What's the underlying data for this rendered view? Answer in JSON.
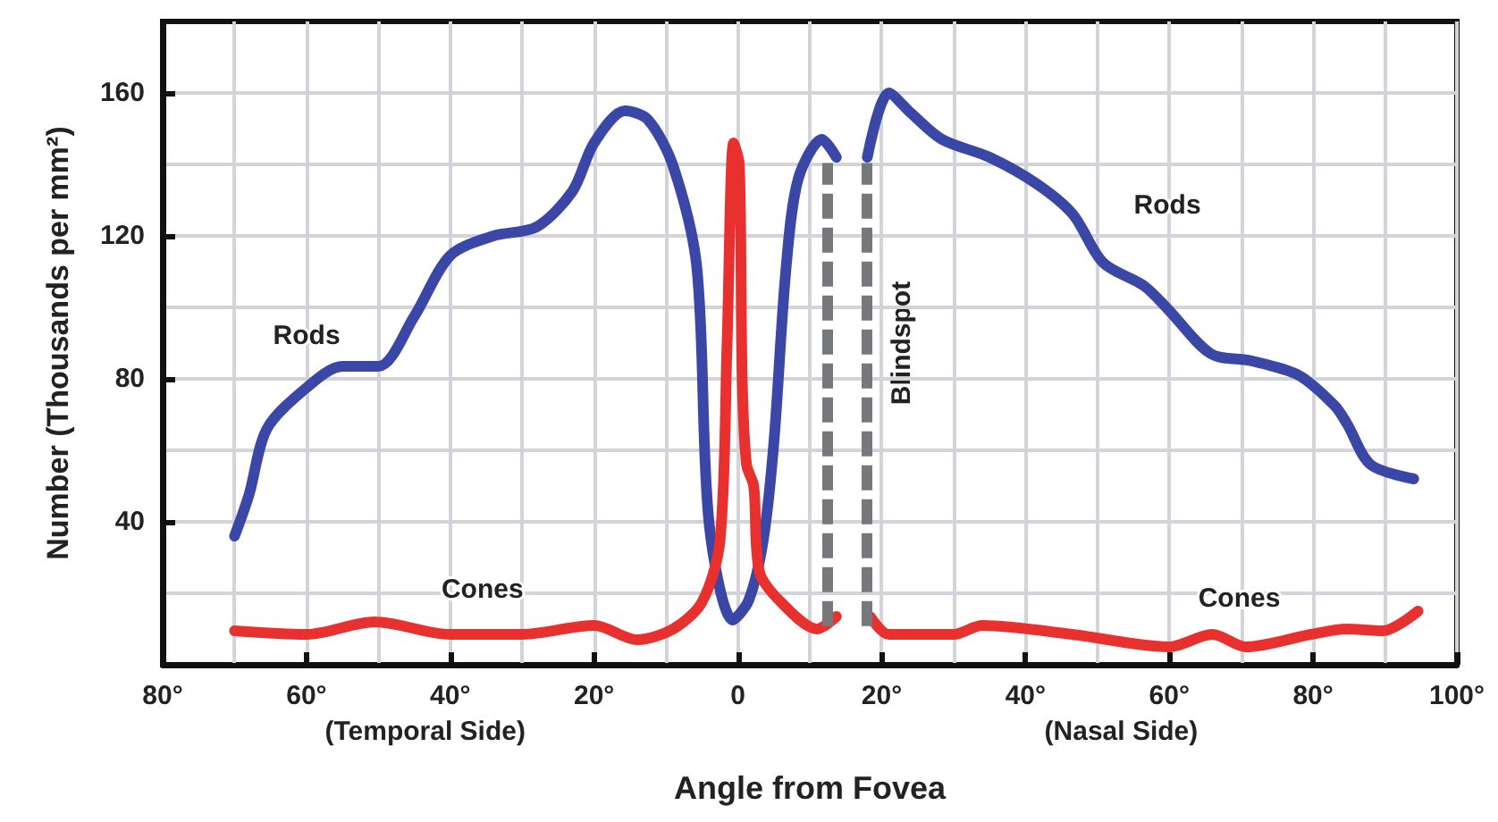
{
  "chart_data": {
    "type": "line",
    "xlabel": "Angle from Fovea",
    "ylabel": "Number (Thousands per mm²)",
    "xlim": [
      -80,
      100
    ],
    "xticks": [
      {
        "value": -80,
        "label": "80°"
      },
      {
        "value": -60,
        "label": "60°"
      },
      {
        "value": -40,
        "label": "40°"
      },
      {
        "value": -20,
        "label": "20°"
      },
      {
        "value": 0,
        "label": "0"
      },
      {
        "value": 20,
        "label": "20°"
      },
      {
        "value": 40,
        "label": "40°"
      },
      {
        "value": 60,
        "label": "60°"
      },
      {
        "value": 80,
        "label": "80°"
      },
      {
        "value": 100,
        "label": "100°"
      }
    ],
    "ylim": [
      0,
      180
    ],
    "yticks": [
      40,
      80,
      120,
      160
    ],
    "grid": true,
    "legend": false,
    "marker": "none",
    "line_style": "solid",
    "series": [
      {
        "name": "Rods",
        "color": "#3b47a6",
        "x": [
          -70,
          -68,
          -65.5,
          -60,
          -55,
          -50,
          -45,
          -40,
          -34,
          -28,
          -23,
          -20,
          -15.7,
          -12.5,
          -9,
          -5.7,
          -4,
          -0.7,
          1.5,
          3.5,
          5,
          6.7,
          8.4,
          11.7,
          13.7
        ],
        "values": [
          36,
          47.5,
          66,
          77.5,
          83.5,
          83.5,
          97.5,
          114.5,
          120,
          122.5,
          132.5,
          146,
          155,
          152.5,
          139.5,
          111,
          39.5,
          12.5,
          18,
          34.5,
          62,
          111,
          136,
          147,
          142
        ]
      },
      {
        "name": "Rods",
        "color": "#3b47a6",
        "x": [
          18,
          21,
          24,
          28.4,
          35,
          41.6,
          46.6,
          50.8,
          56.5,
          59.8,
          65.8,
          71.5,
          78,
          83,
          84.7,
          88,
          94
        ],
        "values": [
          142,
          160,
          154.5,
          147,
          142,
          134.5,
          126,
          112.5,
          106,
          99.5,
          87,
          85,
          81,
          72.5,
          67.5,
          56,
          52
        ]
      },
      {
        "name": "Cones",
        "color": "#e8302e",
        "x": [
          -70,
          -60,
          -50.5,
          -40,
          -30,
          -20,
          -14,
          -9,
          -5,
          -2.5,
          -1.5,
          -0.6,
          0.2,
          0.6,
          1.2,
          2.2,
          3,
          6,
          11,
          13.7
        ],
        "values": [
          9.5,
          8.5,
          12,
          8.5,
          8.5,
          11,
          7,
          10,
          17.5,
          34.5,
          90,
          146,
          140,
          80,
          56,
          50,
          26,
          17.5,
          10,
          13.5
        ]
      },
      {
        "name": "Cones",
        "color": "#e8302e",
        "x": [
          18.4,
          21,
          30,
          34,
          46.5,
          60,
          66,
          70.7,
          79.7,
          84.7,
          89.7,
          94.6
        ],
        "values": [
          13.5,
          8.5,
          8.5,
          11,
          8.5,
          5,
          8.5,
          5,
          8.5,
          10,
          9.5,
          15
        ]
      }
    ],
    "ref_lines": [
      {
        "axis": "x",
        "value": 12.5,
        "color": "#77787b",
        "line_style": "dashed"
      },
      {
        "axis": "x",
        "value": 18,
        "label": "Blindspot",
        "color": "#77787b",
        "line_style": "dashed"
      }
    ],
    "annotations": [
      "(Temporal Side)",
      "(Nasal Side)"
    ]
  }
}
